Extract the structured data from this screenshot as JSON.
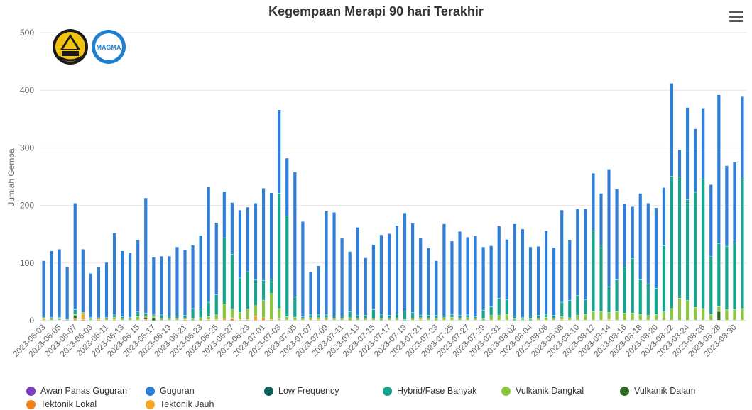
{
  "title": "Kegempaan Merapi 90 hari Terakhir",
  "chart_data": {
    "type": "bar",
    "stacked": true,
    "title": "Kegempaan Merapi 90 hari Terakhir",
    "ylabel": "Jumlah Gempa",
    "xlabel": "",
    "ylim": [
      0,
      500
    ],
    "yticks": [
      0,
      100,
      200,
      300,
      400,
      500
    ],
    "grid": true,
    "legend": "bottom",
    "categories": [
      "2023-06-03",
      "2023-06-04",
      "2023-06-05",
      "2023-06-06",
      "2023-06-07",
      "2023-06-08",
      "2023-06-09",
      "2023-06-10",
      "2023-06-11",
      "2023-06-12",
      "2023-06-13",
      "2023-06-14",
      "2023-06-15",
      "2023-06-16",
      "2023-06-17",
      "2023-06-18",
      "2023-06-19",
      "2023-06-20",
      "2023-06-21",
      "2023-06-22",
      "2023-06-23",
      "2023-06-24",
      "2023-06-25",
      "2023-06-26",
      "2023-06-27",
      "2023-06-28",
      "2023-06-29",
      "2023-06-30",
      "2023-07-01",
      "2023-07-02",
      "2023-07-03",
      "2023-07-04",
      "2023-07-05",
      "2023-07-06",
      "2023-07-07",
      "2023-07-08",
      "2023-07-09",
      "2023-07-10",
      "2023-07-11",
      "2023-07-12",
      "2023-07-13",
      "2023-07-14",
      "2023-07-15",
      "2023-07-16",
      "2023-07-17",
      "2023-07-18",
      "2023-07-19",
      "2023-07-20",
      "2023-07-21",
      "2023-07-22",
      "2023-07-23",
      "2023-07-24",
      "2023-07-25",
      "2023-07-26",
      "2023-07-27",
      "2023-07-28",
      "2023-07-29",
      "2023-07-30",
      "2023-07-31",
      "2023-08-01",
      "2023-08-02",
      "2023-08-03",
      "2023-08-04",
      "2023-08-05",
      "2023-08-06",
      "2023-08-07",
      "2023-08-08",
      "2023-08-09",
      "2023-08-10",
      "2023-08-11",
      "2023-08-12",
      "2023-08-13",
      "2023-08-14",
      "2023-08-15",
      "2023-08-16",
      "2023-08-17",
      "2023-08-18",
      "2023-08-19",
      "2023-08-20",
      "2023-08-21",
      "2023-08-22",
      "2023-08-23",
      "2023-08-24",
      "2023-08-25",
      "2023-08-26",
      "2023-08-27",
      "2023-08-28",
      "2023-08-29",
      "2023-08-30",
      "2023-08-31"
    ],
    "xtick_labels": [
      "2023-06-03",
      "2023-06-05",
      "2023-06-07",
      "2023-06-09",
      "2023-06-11",
      "2023-06-13",
      "2023-06-15",
      "2023-06-17",
      "2023-06-19",
      "2023-06-21",
      "2023-06-23",
      "2023-06-25",
      "2023-06-27",
      "2023-06-29",
      "2023-07-01",
      "2023-07-03",
      "2023-07-05",
      "2023-07-07",
      "2023-07-09",
      "2023-07-11",
      "2023-07-13",
      "2023-07-15",
      "2023-07-17",
      "2023-07-19",
      "2023-07-21",
      "2023-07-23",
      "2023-07-25",
      "2023-07-27",
      "2023-07-29",
      "2023-07-31",
      "2023-08-02",
      "2023-08-04",
      "2023-08-06",
      "2023-08-08",
      "2023-08-10",
      "2023-08-12",
      "2023-08-14",
      "2023-08-16",
      "2023-08-18",
      "2023-08-20",
      "2023-08-22",
      "2023-08-24",
      "2023-08-26",
      "2023-08-28",
      "2023-08-30"
    ],
    "series": [
      {
        "name": "Awan Panas Guguran",
        "color": "#7e3fc2",
        "values": [
          0,
          0,
          0,
          0,
          0,
          0,
          0,
          0,
          0,
          0,
          0,
          0,
          0,
          0,
          0,
          0,
          0,
          0,
          0,
          0,
          0,
          0,
          0,
          0,
          0,
          0,
          0,
          0,
          0,
          0,
          0,
          0,
          0,
          0,
          0,
          0,
          0,
          0,
          0,
          0,
          0,
          0,
          0,
          0,
          0,
          0,
          0,
          0,
          0,
          0,
          0,
          0,
          0,
          0,
          0,
          0,
          0,
          0,
          0,
          0,
          0,
          0,
          0,
          0,
          0,
          0,
          0,
          0,
          0,
          0,
          0,
          0,
          0,
          0,
          0,
          0,
          0,
          0,
          0,
          0,
          0,
          0,
          0,
          0,
          0,
          0,
          0,
          0,
          0,
          0
        ]
      },
      {
        "name": "Tektonik Lokal",
        "color": "#f0821e",
        "values": [
          1,
          0,
          0,
          0,
          0,
          2,
          0,
          0,
          0,
          0,
          0,
          1,
          0,
          0,
          0,
          0,
          0,
          0,
          0,
          0,
          0,
          0,
          0,
          1,
          3,
          0,
          0,
          0,
          0,
          0,
          1,
          0,
          0,
          0,
          0,
          0,
          0,
          0,
          0,
          0,
          0,
          0,
          0,
          0,
          0,
          0,
          0,
          0,
          0,
          0,
          0,
          0,
          0,
          0,
          0,
          0,
          0,
          0,
          0,
          0,
          0,
          0,
          0,
          0,
          0,
          0,
          0,
          0,
          0,
          0,
          0,
          0,
          0,
          0,
          0,
          0,
          0,
          0,
          0,
          0,
          0,
          0,
          0,
          0,
          0,
          0,
          0,
          0,
          0,
          0
        ]
      },
      {
        "name": "Tektonik Jauh",
        "color": "#f5a623",
        "values": [
          2,
          1,
          1,
          0,
          3,
          10,
          1,
          2,
          1,
          2,
          1,
          0,
          1,
          2,
          0,
          0,
          1,
          1,
          2,
          0,
          0,
          2,
          2,
          3,
          2,
          2,
          2,
          8,
          5,
          2,
          2,
          1,
          1,
          1,
          1,
          2,
          1,
          1,
          1,
          0,
          1,
          1,
          1,
          0,
          1,
          1,
          0,
          1,
          2,
          1,
          0,
          1,
          1,
          1,
          1,
          1,
          0,
          1,
          1,
          1,
          0,
          1,
          0,
          1,
          1,
          1,
          2,
          1,
          1,
          1,
          1,
          1,
          2,
          1,
          1,
          1,
          1,
          1,
          1,
          1,
          1,
          1,
          1,
          1,
          1,
          1,
          1,
          1,
          1,
          1
        ]
      },
      {
        "name": "Low Frequency",
        "color": "#0e5e5a",
        "values": [
          0,
          0,
          0,
          0,
          0,
          0,
          0,
          0,
          0,
          0,
          0,
          0,
          0,
          0,
          0,
          0,
          0,
          0,
          0,
          0,
          0,
          0,
          0,
          0,
          0,
          0,
          0,
          0,
          0,
          0,
          0,
          0,
          0,
          0,
          0,
          0,
          0,
          0,
          0,
          0,
          0,
          0,
          0,
          0,
          0,
          0,
          0,
          0,
          0,
          0,
          0,
          0,
          0,
          0,
          0,
          0,
          0,
          0,
          0,
          0,
          0,
          0,
          0,
          0,
          0,
          0,
          0,
          0,
          0,
          0,
          0,
          0,
          0,
          0,
          0,
          0,
          0,
          0,
          0,
          0,
          0,
          0,
          0,
          0,
          0,
          0,
          0,
          0,
          0,
          0
        ]
      },
      {
        "name": "Vulkanik Dalam",
        "color": "#2d6b1e",
        "values": [
          0,
          0,
          0,
          0,
          5,
          0,
          0,
          0,
          0,
          0,
          0,
          0,
          0,
          2,
          5,
          1,
          0,
          0,
          0,
          0,
          0,
          0,
          0,
          0,
          0,
          0,
          0,
          0,
          0,
          0,
          0,
          0,
          0,
          0,
          0,
          0,
          0,
          0,
          0,
          0,
          0,
          0,
          0,
          0,
          0,
          0,
          0,
          0,
          0,
          0,
          0,
          0,
          0,
          0,
          0,
          0,
          0,
          0,
          0,
          0,
          0,
          0,
          0,
          0,
          0,
          0,
          0,
          0,
          0,
          0,
          0,
          0,
          0,
          0,
          0,
          0,
          0,
          0,
          0,
          0,
          0,
          0,
          0,
          0,
          0,
          0,
          15,
          0,
          0,
          0
        ]
      },
      {
        "name": "Vulkanik Dangkal",
        "color": "#8cc63f",
        "values": [
          2,
          3,
          2,
          2,
          3,
          2,
          2,
          3,
          3,
          4,
          3,
          3,
          6,
          4,
          3,
          3,
          3,
          3,
          2,
          3,
          5,
          5,
          8,
          25,
          15,
          12,
          18,
          18,
          30,
          45,
          18,
          6,
          5,
          3,
          4,
          3,
          4,
          3,
          3,
          5,
          3,
          3,
          3,
          4,
          3,
          3,
          2,
          3,
          3,
          3,
          4,
          4,
          5,
          3,
          4,
          3,
          3,
          8,
          8,
          10,
          3,
          2,
          3,
          3,
          5,
          3,
          5,
          4,
          8,
          10,
          15,
          15,
          12,
          15,
          12,
          12,
          10,
          8,
          10,
          14,
          20,
          38,
          34,
          22,
          20,
          10,
          8,
          18,
          18,
          20
        ]
      },
      {
        "name": "Hybrid/Fase Banyak",
        "color": "#17a38e",
        "values": [
          3,
          2,
          3,
          0,
          8,
          0,
          3,
          0,
          2,
          4,
          3,
          2,
          8,
          5,
          2,
          6,
          4,
          4,
          5,
          18,
          15,
          25,
          35,
          115,
          95,
          60,
          65,
          45,
          35,
          25,
          200,
          175,
          35,
          3,
          5,
          5,
          5,
          4,
          4,
          10,
          5,
          5,
          15,
          7,
          5,
          8,
          15,
          10,
          4,
          5,
          5,
          3,
          5,
          5,
          5,
          3,
          15,
          15,
          30,
          25,
          5,
          3,
          5,
          5,
          5,
          5,
          25,
          30,
          35,
          25,
          140,
          115,
          45,
          55,
          80,
          95,
          60,
          55,
          45,
          115,
          230,
          210,
          175,
          200,
          225,
          100,
          110,
          110,
          116,
          225
        ]
      },
      {
        "name": "Guguran",
        "color": "#2f7ed8",
        "values": [
          96,
          115,
          118,
          92,
          185,
          110,
          76,
          88,
          95,
          142,
          114,
          112,
          125,
          200,
          100,
          102,
          104,
          120,
          114,
          110,
          128,
          200,
          125,
          80,
          90,
          118,
          112,
          133,
          160,
          150,
          145,
          100,
          217,
          165,
          75,
          85,
          180,
          180,
          135,
          105,
          153,
          100,
          113,
          138,
          142,
          153,
          170,
          155,
          134,
          117,
          95,
          160,
          127,
          146,
          135,
          140,
          110,
          106,
          125,
          105,
          160,
          153,
          120,
          120,
          145,
          118,
          160,
          105,
          150,
          158,
          100,
          90,
          204,
          157,
          110,
          90,
          150,
          140,
          140,
          101,
          161,
          48,
          160,
          110,
          123,
          125,
          258,
          140,
          140,
          143
        ]
      }
    ]
  },
  "legend_items": [
    {
      "label": "Awan Panas Guguran",
      "color": "#7e3fc2"
    },
    {
      "label": "Guguran",
      "color": "#2f7ed8"
    },
    {
      "label": "Low Frequency",
      "color": "#0e5e5a"
    },
    {
      "label": "Hybrid/Fase Banyak",
      "color": "#17a38e"
    },
    {
      "label": "Vulkanik Dangkal",
      "color": "#8cc63f"
    },
    {
      "label": "Vulkanik Dalam",
      "color": "#2d6b1e"
    },
    {
      "label": "Tektonik Lokal",
      "color": "#f0821e"
    },
    {
      "label": "Tektonik Jauh",
      "color": "#f5a623"
    }
  ],
  "logos": {
    "magma_text": "MAGMA"
  }
}
